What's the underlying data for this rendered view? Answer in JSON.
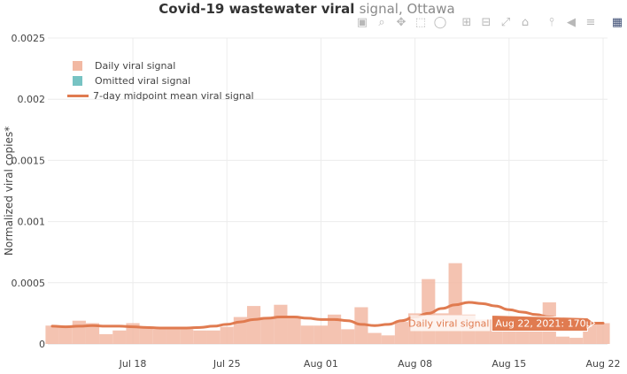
{
  "title": {
    "main": "Covid-19 wastewater viral ",
    "faded": "signal, Ottawa"
  },
  "modebar": {
    "icons": [
      "camera-icon",
      "zoom-icon",
      "pan-icon",
      "box-select-icon",
      "lasso-select-icon",
      "zoom-in-icon",
      "zoom-out-icon",
      "autoscale-icon",
      "reset-axes-icon",
      "spike-lines-icon",
      "hover-closest-icon",
      "hover-compare-icon",
      "plotly-logo-icon"
    ]
  },
  "colors": {
    "bar": "#f2b9a3",
    "omitted": "#77c3c3",
    "line": "#e07b50",
    "tooltip_bg": "#e07b50",
    "grid": "#ececec"
  },
  "chart_data": {
    "type": "bar",
    "title": "Covid-19 wastewater viral signal, Ottawa",
    "ylabel": "Normalized viral copies*",
    "xlabel": "",
    "ylim": [
      0,
      0.0025
    ],
    "yticks": [
      0,
      0.0005,
      0.001,
      0.0015,
      0.002,
      0.0025
    ],
    "ytick_labels": [
      "0",
      "0.0005",
      "0.001",
      "0.0015",
      "0.002",
      "0.0025"
    ],
    "xrange": [
      "2021-07-12",
      "2021-08-22"
    ],
    "xticks": [
      "2021-07-18",
      "2021-07-25",
      "2021-08-01",
      "2021-08-08",
      "2021-08-15",
      "2021-08-22"
    ],
    "xtick_labels": [
      "Jul 18",
      "Jul 25",
      "Aug 01",
      "Aug 08",
      "Aug 15",
      "Aug 22"
    ],
    "grid": true,
    "legend_position": "top-left",
    "series": [
      {
        "name": "Daily viral signal",
        "type": "bar",
        "x": [
          "2021-07-12",
          "2021-07-13",
          "2021-07-14",
          "2021-07-15",
          "2021-07-16",
          "2021-07-17",
          "2021-07-18",
          "2021-07-19",
          "2021-07-20",
          "2021-07-21",
          "2021-07-22",
          "2021-07-23",
          "2021-07-24",
          "2021-07-25",
          "2021-07-26",
          "2021-07-27",
          "2021-07-28",
          "2021-07-29",
          "2021-07-30",
          "2021-07-31",
          "2021-08-01",
          "2021-08-02",
          "2021-08-03",
          "2021-08-04",
          "2021-08-05",
          "2021-08-06",
          "2021-08-07",
          "2021-08-08",
          "2021-08-09",
          "2021-08-10",
          "2021-08-11",
          "2021-08-12",
          "2021-08-13",
          "2021-08-14",
          "2021-08-15",
          "2021-08-16",
          "2021-08-17",
          "2021-08-18",
          "2021-08-19",
          "2021-08-20",
          "2021-08-21",
          "2021-08-22"
        ],
        "values": [
          0.00015,
          0.00015,
          0.00019,
          0.00017,
          8e-05,
          0.00011,
          0.00017,
          0.00013,
          0.00012,
          0.00012,
          0.00012,
          0.00011,
          0.00011,
          0.00014,
          0.00022,
          0.00031,
          0.00022,
          0.00032,
          0.00022,
          0.00015,
          0.00015,
          0.00024,
          0.00012,
          0.0003,
          9e-05,
          7e-05,
          0.00018,
          0.00025,
          0.00053,
          0.00025,
          0.00066,
          0.00024,
          0.0002,
          0.0002,
          0.00019,
          0.00021,
          0.00016,
          0.00034,
          6e-05,
          5e-05,
          0.00017,
          0.00017
        ]
      },
      {
        "name": "Omitted viral signal",
        "type": "bar",
        "x": [],
        "values": []
      },
      {
        "name": "7-day midpoint mean viral signal",
        "type": "line",
        "x": [
          "2021-07-12",
          "2021-07-13",
          "2021-07-14",
          "2021-07-15",
          "2021-07-16",
          "2021-07-17",
          "2021-07-18",
          "2021-07-19",
          "2021-07-20",
          "2021-07-21",
          "2021-07-22",
          "2021-07-23",
          "2021-07-24",
          "2021-07-25",
          "2021-07-26",
          "2021-07-27",
          "2021-07-28",
          "2021-07-29",
          "2021-07-30",
          "2021-07-31",
          "2021-08-01",
          "2021-08-02",
          "2021-08-03",
          "2021-08-04",
          "2021-08-05",
          "2021-08-06",
          "2021-08-07",
          "2021-08-08",
          "2021-08-09",
          "2021-08-10",
          "2021-08-11",
          "2021-08-12",
          "2021-08-13",
          "2021-08-14",
          "2021-08-15",
          "2021-08-16",
          "2021-08-17",
          "2021-08-18",
          "2021-08-19",
          "2021-08-20",
          "2021-08-21",
          "2021-08-22"
        ],
        "values": [
          0.000145,
          0.00014,
          0.000145,
          0.00015,
          0.000145,
          0.000145,
          0.00014,
          0.000135,
          0.00013,
          0.00013,
          0.00013,
          0.000135,
          0.000145,
          0.00016,
          0.00018,
          0.0002,
          0.00021,
          0.00022,
          0.00022,
          0.00021,
          0.0002,
          0.0002,
          0.00019,
          0.00016,
          0.00015,
          0.00016,
          0.00019,
          0.00022,
          0.00025,
          0.00029,
          0.00032,
          0.00034,
          0.00033,
          0.00031,
          0.00028,
          0.00026,
          0.00024,
          0.00022,
          0.0002,
          0.00018,
          0.00017,
          0.00017
        ]
      }
    ],
    "hover": {
      "series_label": "Daily viral signal",
      "value_label": "Aug 22, 2021: 170µ"
    }
  }
}
